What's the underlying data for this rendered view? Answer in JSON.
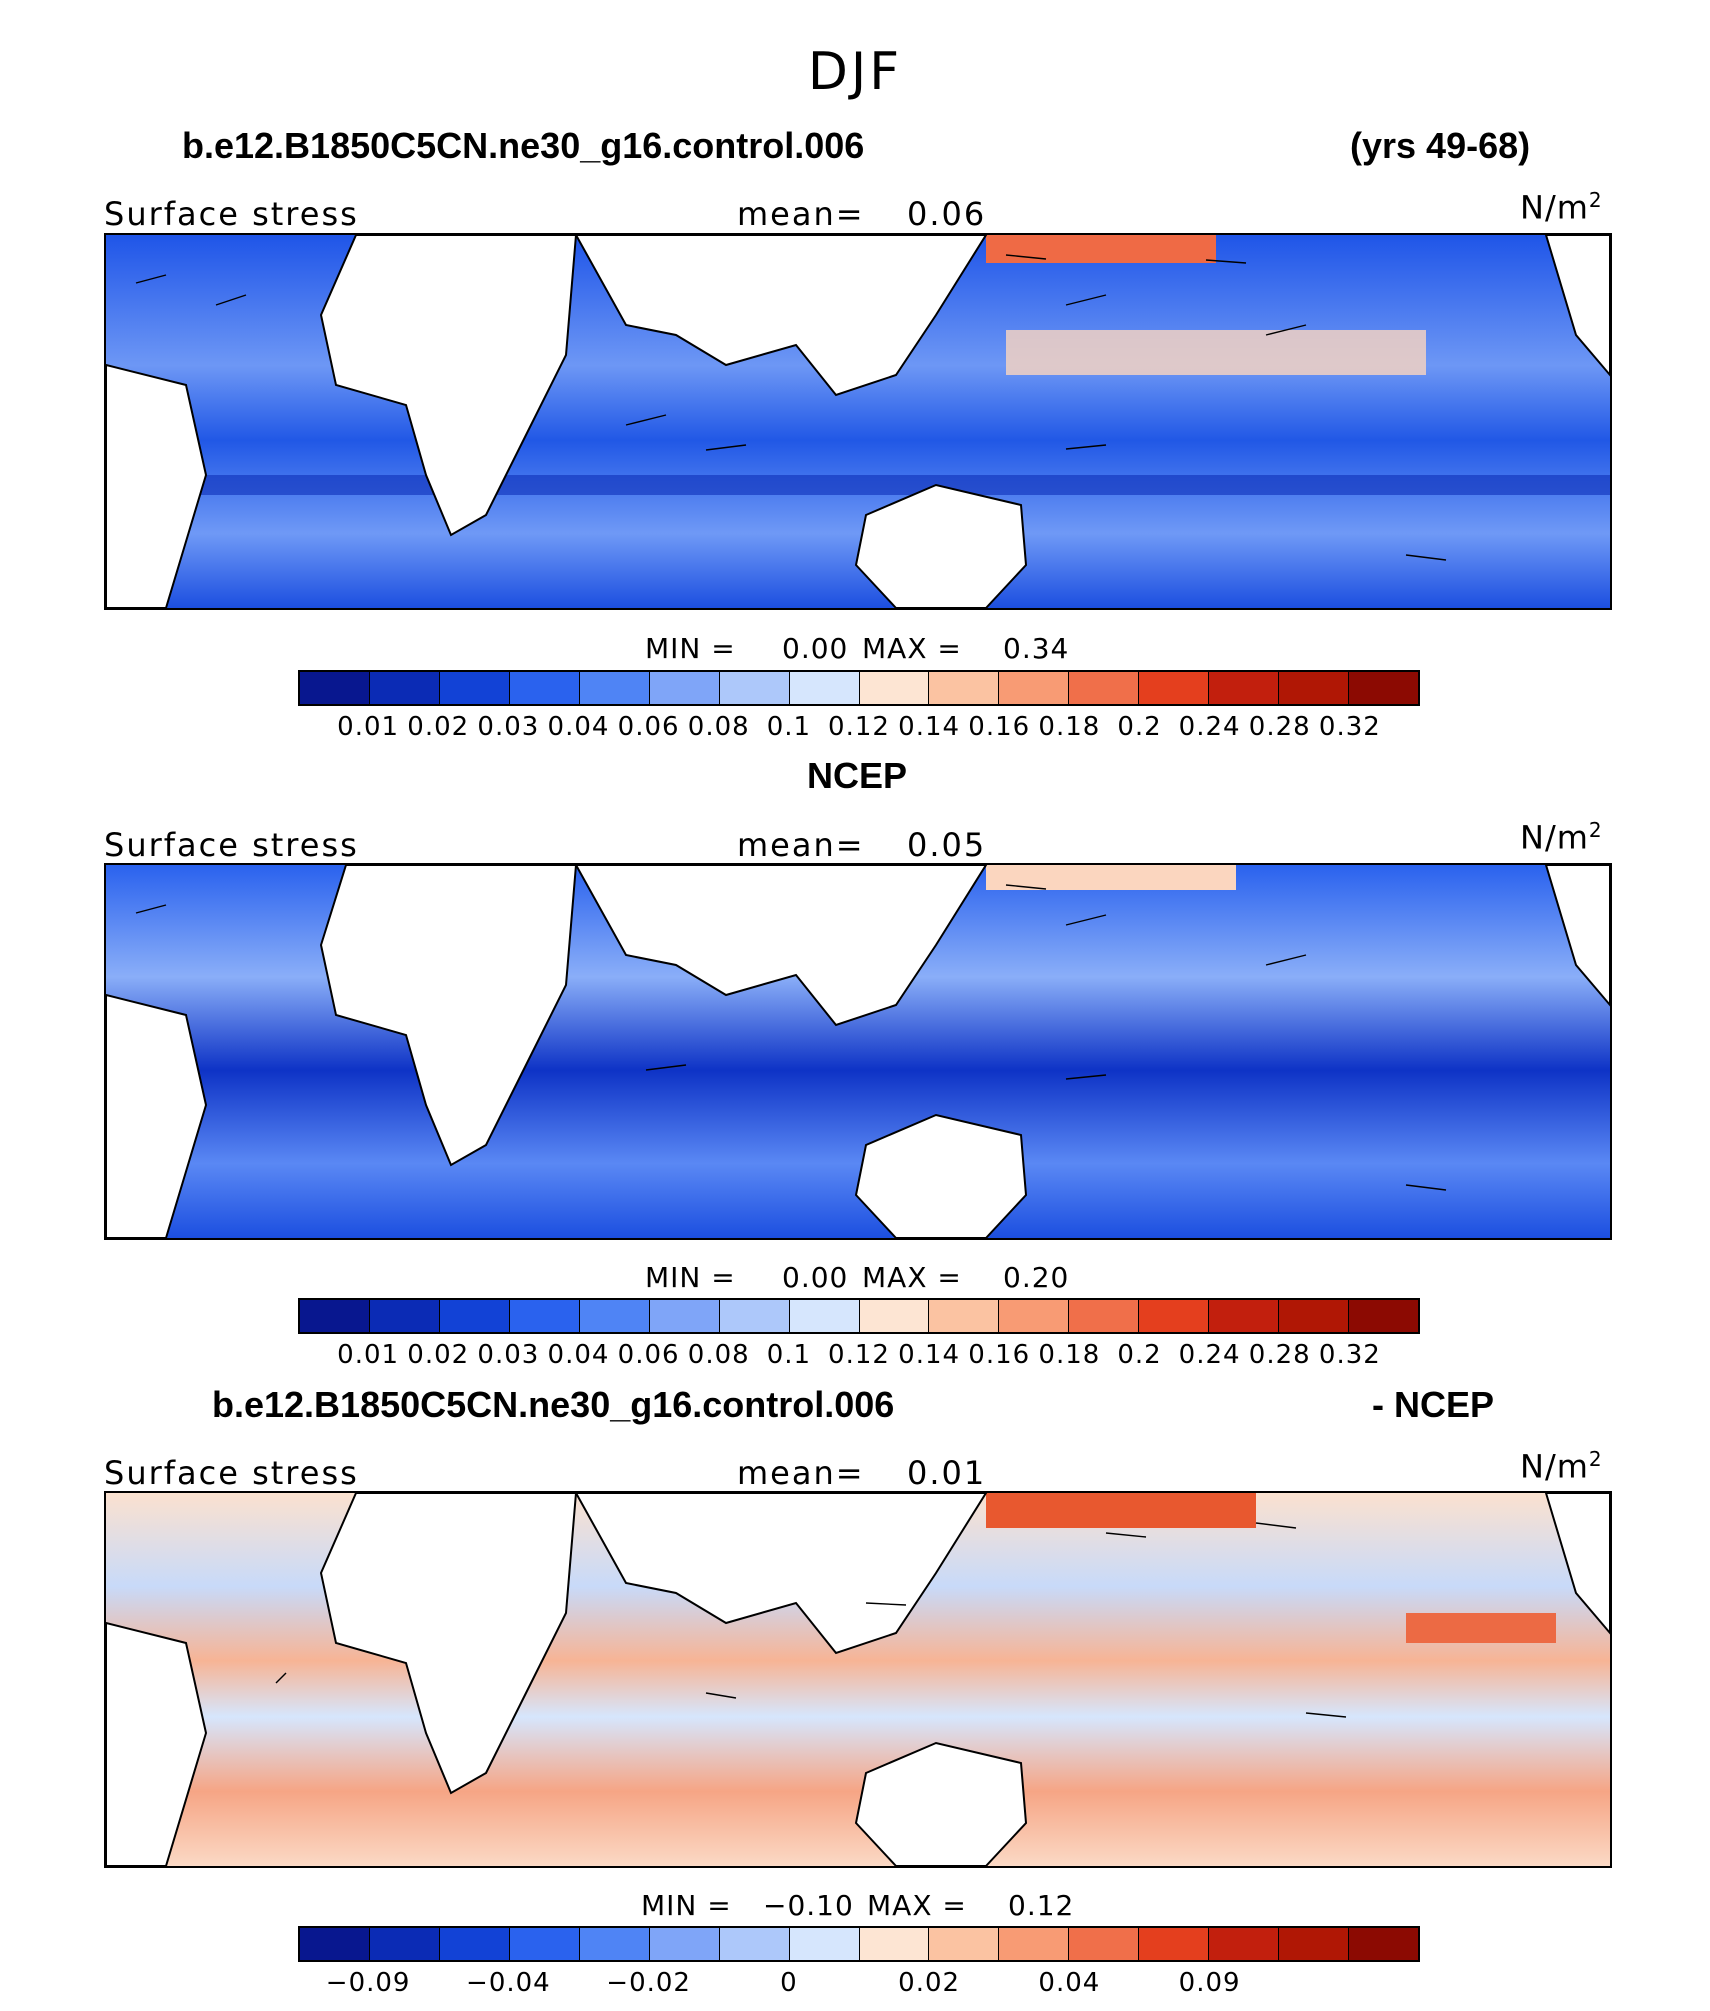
{
  "figure": {
    "title": "DJF",
    "case_name": "b.e12.B1850C5CN.ne30_g16.control.006",
    "years": "(yrs 49-68)",
    "obs_name": "NCEP",
    "diff_suffix": "- NCEP"
  },
  "panels": [
    {
      "label": "Surface stress",
      "mean_label": "mean=",
      "mean_value": "0.06",
      "units_base": "N/m",
      "units_exp": "2",
      "min_label": "MIN =",
      "min_value": "0.00",
      "max_label": "MAX =",
      "max_value": "0.34",
      "colorbar_ticks": [
        "0.01",
        "0.02",
        "0.03",
        "0.04",
        "0.06",
        "0.08",
        "0.1",
        "0.12",
        "0.14",
        "0.16",
        "0.18",
        "0.2",
        "0.24",
        "0.28",
        "0.32"
      ]
    },
    {
      "label": "Surface stress",
      "mean_label": "mean=",
      "mean_value": "0.05",
      "units_base": "N/m",
      "units_exp": "2",
      "min_label": "MIN =",
      "min_value": "0.00",
      "max_label": "MAX =",
      "max_value": "0.20",
      "colorbar_ticks": [
        "0.01",
        "0.02",
        "0.03",
        "0.04",
        "0.06",
        "0.08",
        "0.1",
        "0.12",
        "0.14",
        "0.16",
        "0.18",
        "0.2",
        "0.24",
        "0.28",
        "0.32"
      ]
    },
    {
      "label": "Surface stress",
      "mean_label": "mean=",
      "mean_value": "0.01",
      "units_base": "N/m",
      "units_exp": "2",
      "min_label": "MIN =",
      "min_value": "−0.10",
      "max_label": "MAX =",
      "max_value": "0.12",
      "colorbar_ticks": [
        "−0.09",
        "−0.04",
        "−0.02",
        "0",
        "0.02",
        "0.04",
        "0.09"
      ]
    }
  ],
  "colorbar_colors": [
    "#08178f",
    "#0b2bb5",
    "#1242d6",
    "#2a62ee",
    "#4f84f5",
    "#7fa5f8",
    "#adc8fa",
    "#d6e6fd",
    "#fde5d3",
    "#fbc3a2",
    "#f89b74",
    "#f06f4a",
    "#e43f1e",
    "#c21f0d",
    "#b01705",
    "#8c0a02"
  ]
}
